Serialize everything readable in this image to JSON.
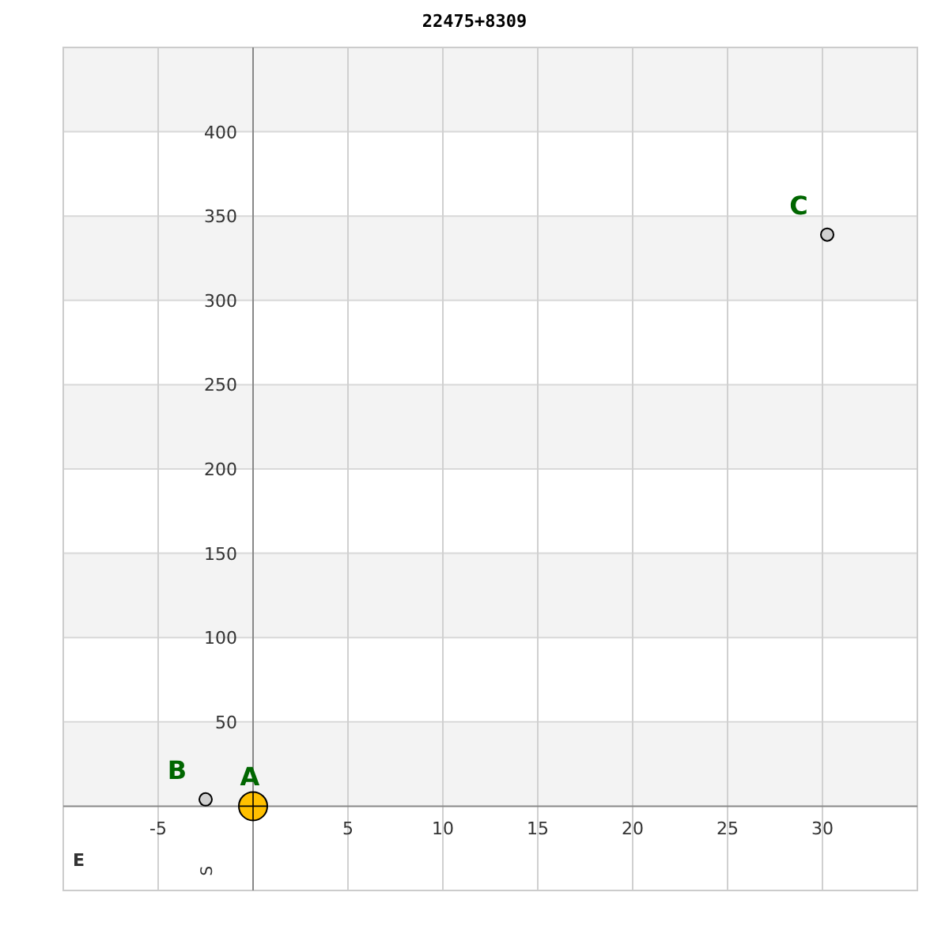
{
  "chart_data": {
    "type": "scatter",
    "title": "22475+8309",
    "series": [
      {
        "name": "A",
        "color": "#ffc000",
        "x": [
          0
        ],
        "values": [
          0
        ]
      },
      {
        "name": "B",
        "color": "#d0d0d0",
        "x": [
          -2.5
        ],
        "values": [
          4
        ]
      },
      {
        "name": "C",
        "color": "#d0d0d0",
        "x": [
          30.25
        ],
        "values": [
          339
        ]
      }
    ],
    "xlim": [
      -10,
      35
    ],
    "ylim": [
      -50,
      450
    ],
    "xticks": [
      -5,
      5,
      10,
      15,
      20,
      25,
      30
    ],
    "yticks": [
      50,
      100,
      150,
      200,
      250,
      300,
      350,
      400
    ],
    "bands": [
      {
        "axis": "y",
        "from": 0,
        "to": 50,
        "color": "#f3f3f3"
      },
      {
        "axis": "y",
        "from": 100,
        "to": 150,
        "color": "#f3f3f3"
      },
      {
        "axis": "y",
        "from": 200,
        "to": 250,
        "color": "#f3f3f3"
      },
      {
        "axis": "y",
        "from": 300,
        "to": 350,
        "color": "#f3f3f3"
      },
      {
        "axis": "y",
        "from": 400,
        "to": 450,
        "color": "#f3f3f3"
      }
    ],
    "grid": true,
    "marker": "circle",
    "annotations": [
      "E",
      "S"
    ]
  }
}
